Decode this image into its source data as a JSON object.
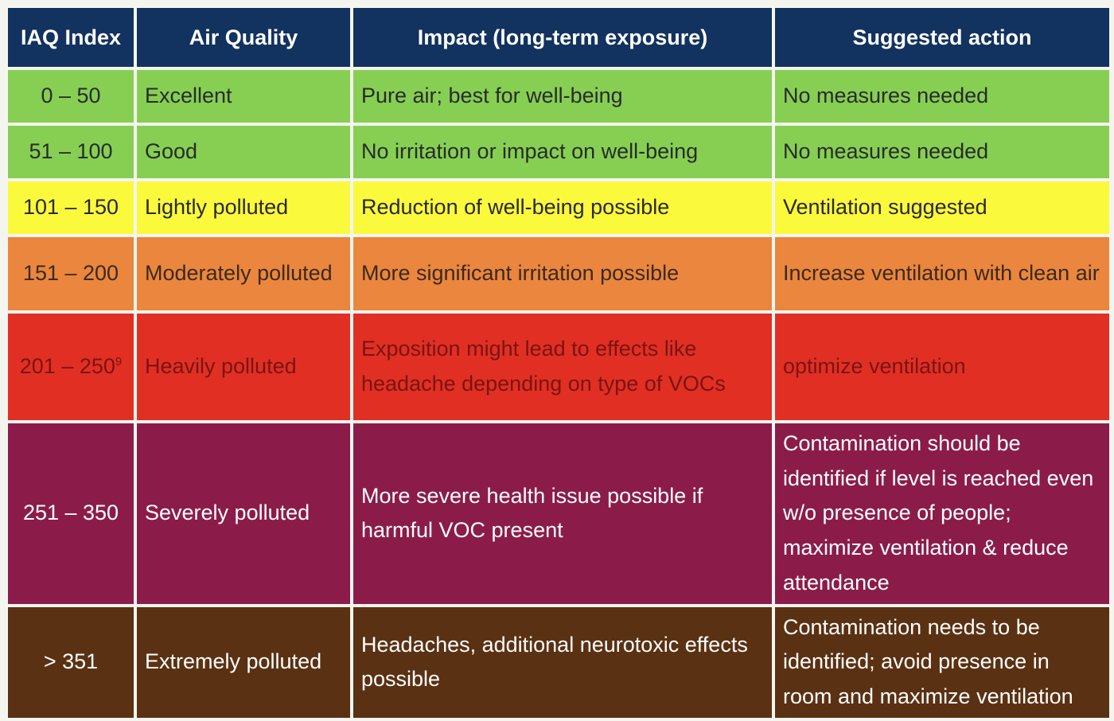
{
  "header": {
    "background": "#12325f",
    "text_color": "#ffffff",
    "columns": [
      "IAQ Index",
      "Air Quality",
      "Impact (long-term exposure)",
      "Suggested action"
    ]
  },
  "rows": [
    {
      "index": "0 – 50",
      "index_sup": "",
      "quality": "Excellent",
      "impact": "Pure air; best for well-being",
      "action": "No measures needed",
      "bg": "#86cf53",
      "fg": "#2a2a2a"
    },
    {
      "index": "51 – 100",
      "index_sup": "",
      "quality": "Good",
      "impact": "No irritation or impact on well-being",
      "action": "No measures needed",
      "bg": "#86cf53",
      "fg": "#2a2a2a"
    },
    {
      "index": "101 – 150",
      "index_sup": "",
      "quality": "Lightly polluted",
      "impact": "Reduction of well-being possible",
      "action": "Ventilation suggested",
      "bg": "#fbf93c",
      "fg": "#2a2a2a"
    },
    {
      "index": "151 – 200",
      "index_sup": "",
      "quality": "Moderately polluted",
      "impact": "More significant irritation possible",
      "action": "Increase ventilation with clean air",
      "bg": "#eb863e",
      "fg": "#3a2a1a"
    },
    {
      "index": "201 – 250",
      "index_sup": "9",
      "quality": "Heavily polluted",
      "impact": "Exposition might lead to effects like headache depending on type of VOCs",
      "action": "optimize ventilation",
      "bg": "#e12f24",
      "fg": "#7a1410"
    },
    {
      "index": "251 – 350",
      "index_sup": "",
      "quality": "Severely polluted",
      "impact": "More severe health issue possible if harmful VOC present",
      "action": "Contamination should be identified if level is reached even w/o presence of people; maximize ventilation & reduce attendance",
      "bg": "#8b1c4a",
      "fg": "#ffffff"
    },
    {
      "index": "> 351",
      "index_sup": "",
      "quality": "Extremely polluted",
      "impact": "Headaches, additional neurotoxic effects possible",
      "action": "Contamination needs to be identified; avoid presence in room and maximize ventilation",
      "bg": "#5a3112",
      "fg": "#ffffff"
    }
  ]
}
